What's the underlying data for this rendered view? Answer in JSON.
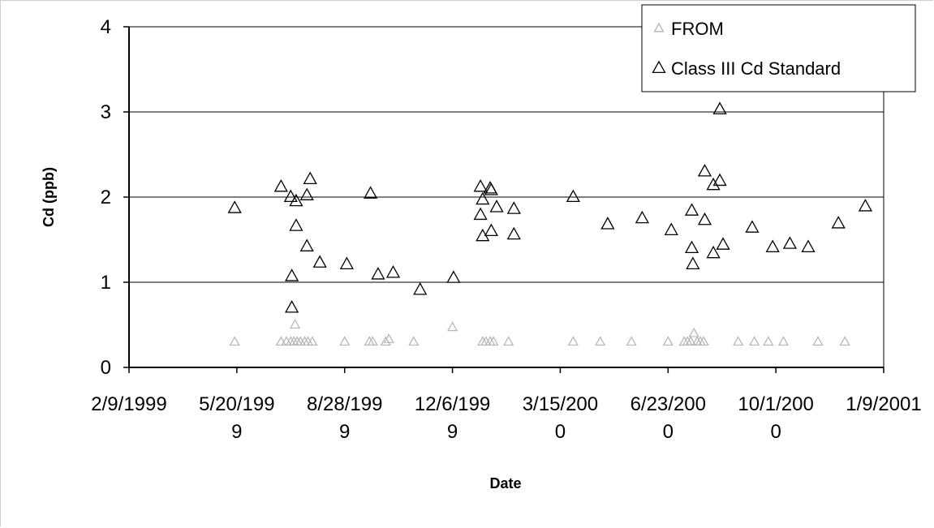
{
  "chart_data": {
    "type": "scatter",
    "xlabel": "Date",
    "ylabel": "Cd (ppb)",
    "xlim": [
      "1999-02-09",
      "2001-01-09"
    ],
    "ylim": [
      0,
      4
    ],
    "y_ticks": [
      "0",
      "1",
      "2",
      "3",
      "4"
    ],
    "x_ticks": [
      {
        "lines": [
          "2/9/1999"
        ]
      },
      {
        "lines": [
          "5/20/199",
          "9"
        ]
      },
      {
        "lines": [
          "8/28/199",
          "9"
        ]
      },
      {
        "lines": [
          "12/6/199",
          "9"
        ]
      },
      {
        "lines": [
          "3/15/200",
          "0"
        ]
      },
      {
        "lines": [
          "6/23/200",
          "0"
        ]
      },
      {
        "lines": [
          "10/1/200",
          "0"
        ]
      },
      {
        "lines": [
          "1/9/2001"
        ]
      }
    ],
    "grid": "horizontal",
    "legend_position": "top-right",
    "series": [
      {
        "name": "FROM",
        "marker": "triangle",
        "color": "#b4b4b4",
        "points": [
          [
            "1999-05-18",
            0.3
          ],
          [
            "1999-06-30",
            0.3
          ],
          [
            "1999-07-05",
            0.3
          ],
          [
            "1999-07-09",
            0.3
          ],
          [
            "1999-07-12",
            0.3
          ],
          [
            "1999-07-13",
            0.5
          ],
          [
            "1999-07-15",
            0.3
          ],
          [
            "1999-07-18",
            0.3
          ],
          [
            "1999-07-22",
            0.3
          ],
          [
            "1999-07-25",
            0.3
          ],
          [
            "1999-07-29",
            0.3
          ],
          [
            "1999-08-28",
            0.3
          ],
          [
            "1999-09-20",
            0.3
          ],
          [
            "1999-09-23",
            0.3
          ],
          [
            "1999-10-05",
            0.3
          ],
          [
            "1999-10-08",
            0.33
          ],
          [
            "1999-10-31",
            0.3
          ],
          [
            "1999-12-06",
            0.47
          ],
          [
            "2000-01-03",
            0.3
          ],
          [
            "2000-01-06",
            0.3
          ],
          [
            "2000-01-10",
            0.3
          ],
          [
            "2000-01-13",
            0.3
          ],
          [
            "2000-01-27",
            0.3
          ],
          [
            "2000-03-27",
            0.3
          ],
          [
            "2000-04-21",
            0.3
          ],
          [
            "2000-05-20",
            0.3
          ],
          [
            "2000-06-23",
            0.3
          ],
          [
            "2000-07-08",
            0.3
          ],
          [
            "2000-07-11",
            0.3
          ],
          [
            "2000-07-14",
            0.3
          ],
          [
            "2000-07-17",
            0.4
          ],
          [
            "2000-07-20",
            0.3
          ],
          [
            "2000-07-23",
            0.3
          ],
          [
            "2000-07-26",
            0.3
          ],
          [
            "2000-08-27",
            0.3
          ],
          [
            "2000-09-11",
            0.3
          ],
          [
            "2000-09-24",
            0.3
          ],
          [
            "2000-10-08",
            0.3
          ],
          [
            "2000-11-09",
            0.3
          ],
          [
            "2000-12-04",
            0.3
          ]
        ]
      },
      {
        "name": "Class III Cd Standard",
        "marker": "triangle",
        "color": "#000000",
        "points": [
          [
            "1999-05-18",
            1.87
          ],
          [
            "1999-06-30",
            2.12
          ],
          [
            "1999-07-09",
            2.0
          ],
          [
            "1999-07-10",
            1.07
          ],
          [
            "1999-07-10",
            0.7
          ],
          [
            "1999-07-14",
            1.95
          ],
          [
            "1999-07-14",
            1.66
          ],
          [
            "1999-07-24",
            2.02
          ],
          [
            "1999-07-24",
            1.42
          ],
          [
            "1999-07-27",
            2.21
          ],
          [
            "1999-08-05",
            1.23
          ],
          [
            "1999-08-30",
            1.21
          ],
          [
            "1999-09-21",
            2.04
          ],
          [
            "1999-09-28",
            1.09
          ],
          [
            "1999-10-12",
            1.11
          ],
          [
            "1999-11-06",
            0.91
          ],
          [
            "1999-12-07",
            1.05
          ],
          [
            "2000-01-01",
            2.12
          ],
          [
            "2000-01-01",
            1.79
          ],
          [
            "2000-01-03",
            1.97
          ],
          [
            "2000-01-03",
            1.54
          ],
          [
            "2000-01-10",
            2.1
          ],
          [
            "2000-01-11",
            2.08
          ],
          [
            "2000-01-11",
            1.6
          ],
          [
            "2000-01-16",
            1.88
          ],
          [
            "2000-02-01",
            1.86
          ],
          [
            "2000-02-01",
            1.56
          ],
          [
            "2000-03-27",
            2.0
          ],
          [
            "2000-04-28",
            1.68
          ],
          [
            "2000-05-30",
            1.75
          ],
          [
            "2000-06-26",
            1.61
          ],
          [
            "2000-07-15",
            1.84
          ],
          [
            "2000-07-15",
            1.4
          ],
          [
            "2000-07-16",
            1.21
          ],
          [
            "2000-07-27",
            2.3
          ],
          [
            "2000-07-27",
            1.73
          ],
          [
            "2000-08-04",
            2.14
          ],
          [
            "2000-08-04",
            1.34
          ],
          [
            "2000-08-10",
            3.03
          ],
          [
            "2000-08-10",
            2.19
          ],
          [
            "2000-08-13",
            1.44
          ],
          [
            "2000-09-09",
            1.64
          ],
          [
            "2000-09-28",
            1.41
          ],
          [
            "2000-10-14",
            1.45
          ],
          [
            "2000-10-31",
            1.41
          ],
          [
            "2000-11-28",
            1.69
          ],
          [
            "2000-12-23",
            1.89
          ]
        ]
      }
    ]
  }
}
